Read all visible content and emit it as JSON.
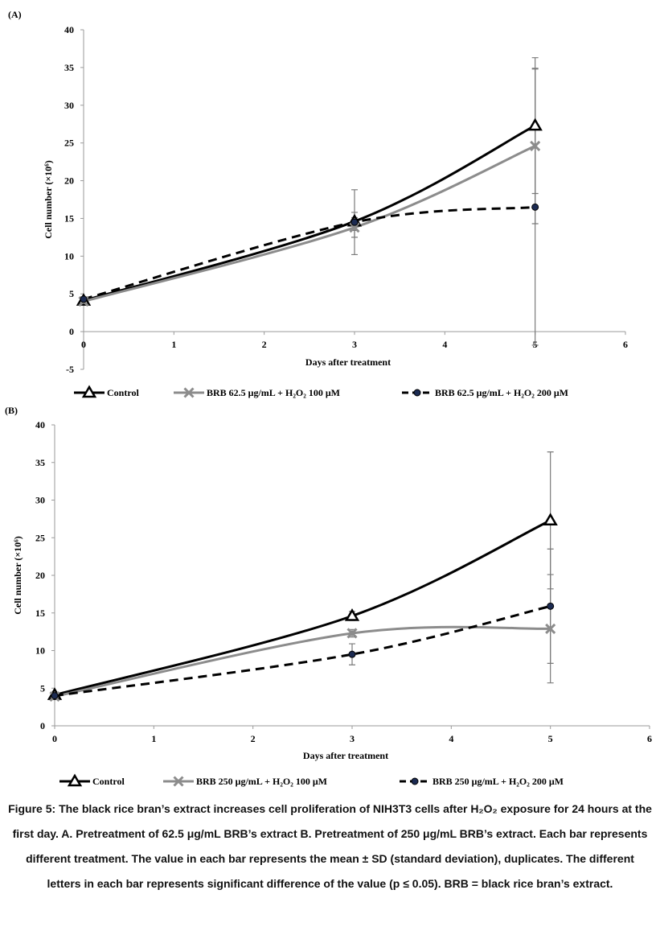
{
  "colors": {
    "control": "#000000",
    "treatment_low": "#8c8c8c",
    "treatment_high": "#000000",
    "marker_fill": "#1c2b52"
  },
  "chart_data": [
    {
      "panel_label": "(A)",
      "type": "line",
      "xlabel": "Days after treatment",
      "ylabel": "Cell number (×10⁶)",
      "xlim": [
        0,
        6
      ],
      "ylim": [
        -5,
        40
      ],
      "xticks": [
        0,
        1,
        2,
        3,
        4,
        5,
        6
      ],
      "yticks": [
        -5,
        0,
        5,
        10,
        15,
        20,
        25,
        30,
        35,
        40
      ],
      "grid": false,
      "legend_position": "bottom",
      "series": [
        {
          "name": "Control",
          "x": [
            0,
            3,
            5
          ],
          "y": [
            4.1,
            14.6,
            27.3
          ],
          "err": [
            0.3,
            1.2,
            9.0
          ],
          "marker": "triangle",
          "line": "solid",
          "color": "#000000"
        },
        {
          "name": "BRB 62.5 μg/mL + H₂O₂ 100 μM",
          "x": [
            0,
            3,
            5
          ],
          "y": [
            4.0,
            13.8,
            24.6
          ],
          "err": [
            0.3,
            1.3,
            10.3
          ],
          "marker": "x",
          "line": "solid",
          "color": "#8c8c8c"
        },
        {
          "name": "BRB 62.5 μg/mL + H₂O₂ 200 μM",
          "x": [
            0,
            3,
            5
          ],
          "y": [
            4.3,
            14.5,
            16.5
          ],
          "err": [
            0.3,
            4.3,
            18.3
          ],
          "marker": "dot",
          "line": "dashed",
          "color": "#000000"
        }
      ]
    },
    {
      "panel_label": "(B)",
      "type": "line",
      "xlabel": "Days after treatment",
      "ylabel": "Cell number (×10⁶)",
      "xlim": [
        0,
        6
      ],
      "ylim": [
        0,
        40
      ],
      "xticks": [
        0,
        1,
        2,
        3,
        4,
        5,
        6
      ],
      "yticks": [
        0,
        5,
        10,
        15,
        20,
        25,
        30,
        35,
        40
      ],
      "grid": false,
      "legend_position": "bottom",
      "series": [
        {
          "name": "Control",
          "x": [
            0,
            3,
            5
          ],
          "y": [
            4.1,
            14.6,
            27.3
          ],
          "err": [
            0.3,
            0.6,
            9.1
          ],
          "marker": "triangle",
          "line": "solid",
          "color": "#000000"
        },
        {
          "name": "BRB 250 μg/mL + H₂O₂ 100 μM",
          "x": [
            0,
            3,
            5
          ],
          "y": [
            3.9,
            12.3,
            12.9
          ],
          "err": [
            0.2,
            0.5,
            7.2
          ],
          "marker": "x",
          "line": "solid",
          "color": "#8c8c8c"
        },
        {
          "name": "BRB 250 μg/mL + H₂O₂ 200 μM",
          "x": [
            0,
            3,
            5
          ],
          "y": [
            4.0,
            9.5,
            15.9
          ],
          "err": [
            0.2,
            1.4,
            7.6
          ],
          "marker": "dot",
          "line": "dashed",
          "color": "#000000"
        }
      ]
    }
  ],
  "caption": {
    "text": "Figure 5: The black rice bran’s extract increases cell proliferation of NIH3T3 cells after H₂O₂ exposure for 24 hours at the first day.  A. Pretreatment of 62.5 μg/mL BRB’s extract B. Pretreatment of 250 μg/mL BRB’s extract.  Each bar represents different treatment. The value in each bar represents the mean ± SD (standard deviation), duplicates. The different letters in each bar represents significant difference of the value (p ≤ 0.05). BRB = black rice bran’s extract."
  }
}
